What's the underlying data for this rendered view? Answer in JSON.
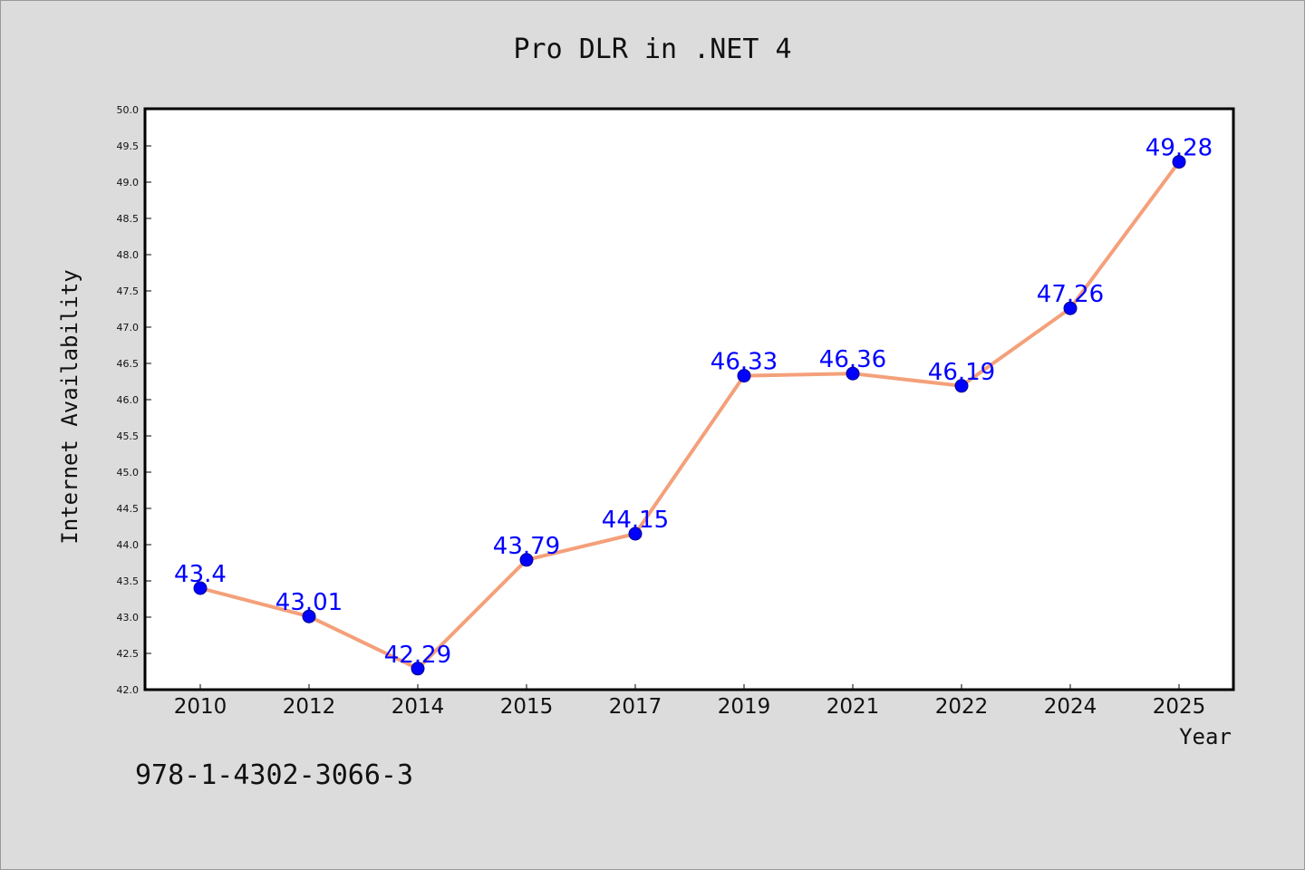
{
  "chart_data": {
    "type": "line",
    "title": "Pro DLR in .NET 4",
    "xlabel": "Year",
    "ylabel": "Internet Availability",
    "categories": [
      "2010",
      "2012",
      "2014",
      "2015",
      "2017",
      "2019",
      "2021",
      "2022",
      "2024",
      "2025"
    ],
    "series": [
      {
        "values": [
          43.4,
          43.01,
          42.29,
          43.79,
          44.15,
          46.33,
          46.36,
          46.19,
          47.26,
          49.28
        ],
        "data_labels": [
          "43.4",
          "43.01",
          "42.29",
          "43.79",
          "44.15",
          "46.33",
          "46.36",
          "46.19",
          "47.26",
          "49.28"
        ],
        "line_color": "#f4a07a",
        "marker_color": "#0000ff"
      }
    ],
    "ylim": [
      42.0,
      50.0
    ],
    "yticks": [
      "42.0",
      "42.5",
      "43.0",
      "43.5",
      "44.0",
      "44.5",
      "45.0",
      "45.5",
      "46.0",
      "46.5",
      "47.0",
      "47.5",
      "48.0",
      "48.5",
      "49.0",
      "49.5",
      "50.0"
    ],
    "grid": false,
    "legend": "none"
  },
  "footnote": "978-1-4302-3066-3",
  "colors": {
    "background": "#dcdcdc",
    "plot_background": "#ffffff",
    "line": "#f4a07a",
    "marker": "#0000ff",
    "data_label": "#0000ff"
  }
}
